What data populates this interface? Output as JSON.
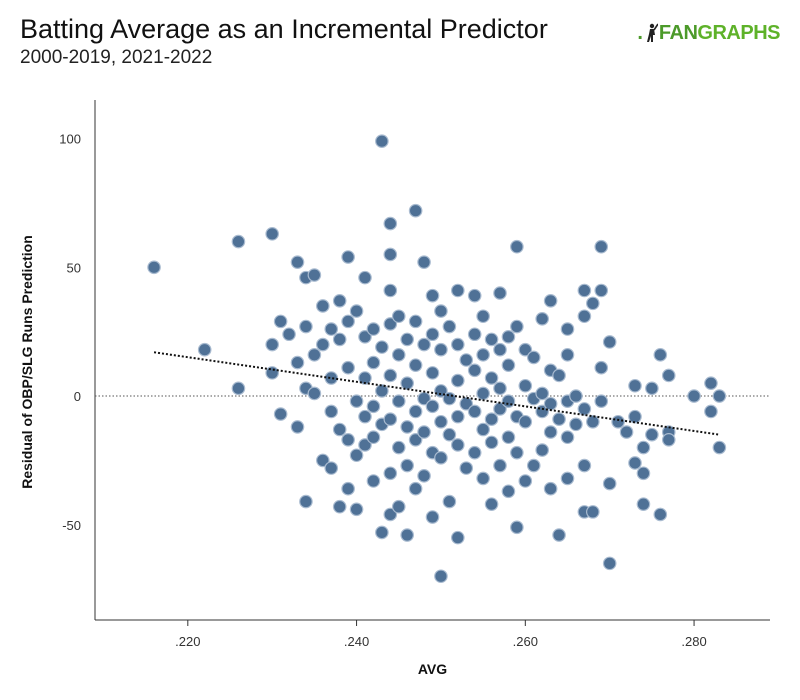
{
  "header": {
    "title": "Batting Average as an Incremental Predictor",
    "subtitle": "2000-2019, 2021-2022",
    "brand_prefix": ".",
    "brand_word_1": "FAN",
    "brand_word_2": "GRAPHS",
    "brand_icon": "batter-silhouette-icon"
  },
  "colors": {
    "point_fill": "#4f7196",
    "point_stroke": "#a9bbd0",
    "trend": "#111111",
    "brand_green": "#4c9a2a"
  },
  "chart_data": {
    "type": "scatter",
    "title": "Batting Average as an Incremental Predictor",
    "subtitle": "2000-2019, 2021-2022",
    "xlabel": "AVG",
    "ylabel": "Residual of OBP/SLG Runs Prediction",
    "xlim": [
      0.209,
      0.289
    ],
    "ylim": [
      -87,
      115
    ],
    "x_ticks": [
      0.22,
      0.24,
      0.26,
      0.28
    ],
    "x_tick_labels": [
      ".220",
      ".240",
      ".260",
      ".280"
    ],
    "y_ticks": [
      -50,
      0,
      50,
      100
    ],
    "y_tick_labels": [
      "-50",
      "0",
      "50",
      "100"
    ],
    "zero_line": "dotted",
    "grid": false,
    "legend": "none",
    "trendline": {
      "x": [
        0.216,
        0.283
      ],
      "y": [
        17,
        -15
      ],
      "style": "dotted"
    },
    "series": [
      {
        "points": [
          [
            0.216,
            50
          ],
          [
            0.222,
            18
          ],
          [
            0.226,
            60
          ],
          [
            0.226,
            3
          ],
          [
            0.23,
            63
          ],
          [
            0.23,
            20
          ],
          [
            0.23,
            9
          ],
          [
            0.231,
            29
          ],
          [
            0.231,
            -7
          ],
          [
            0.232,
            24
          ],
          [
            0.233,
            52
          ],
          [
            0.233,
            13
          ],
          [
            0.233,
            -12
          ],
          [
            0.234,
            46
          ],
          [
            0.234,
            27
          ],
          [
            0.234,
            3
          ],
          [
            0.234,
            -41
          ],
          [
            0.235,
            47
          ],
          [
            0.235,
            16
          ],
          [
            0.235,
            1
          ],
          [
            0.236,
            35
          ],
          [
            0.236,
            20
          ],
          [
            0.236,
            -25
          ],
          [
            0.237,
            26
          ],
          [
            0.237,
            7
          ],
          [
            0.237,
            -6
          ],
          [
            0.237,
            -28
          ],
          [
            0.238,
            37
          ],
          [
            0.238,
            22
          ],
          [
            0.238,
            -13
          ],
          [
            0.238,
            -43
          ],
          [
            0.239,
            54
          ],
          [
            0.239,
            29
          ],
          [
            0.239,
            11
          ],
          [
            0.239,
            -17
          ],
          [
            0.239,
            -36
          ],
          [
            0.24,
            33
          ],
          [
            0.24,
            -2
          ],
          [
            0.24,
            -23
          ],
          [
            0.24,
            -44
          ],
          [
            0.241,
            46
          ],
          [
            0.241,
            23
          ],
          [
            0.241,
            7
          ],
          [
            0.241,
            -8
          ],
          [
            0.241,
            -19
          ],
          [
            0.242,
            26
          ],
          [
            0.242,
            13
          ],
          [
            0.242,
            -4
          ],
          [
            0.242,
            -16
          ],
          [
            0.242,
            -33
          ],
          [
            0.243,
            99
          ],
          [
            0.243,
            19
          ],
          [
            0.243,
            2
          ],
          [
            0.243,
            -11
          ],
          [
            0.243,
            -53
          ],
          [
            0.244,
            67
          ],
          [
            0.244,
            55
          ],
          [
            0.244,
            41
          ],
          [
            0.244,
            28
          ],
          [
            0.244,
            8
          ],
          [
            0.244,
            -9
          ],
          [
            0.244,
            -30
          ],
          [
            0.244,
            -46
          ],
          [
            0.245,
            31
          ],
          [
            0.245,
            16
          ],
          [
            0.245,
            -2
          ],
          [
            0.245,
            -20
          ],
          [
            0.245,
            -43
          ],
          [
            0.246,
            22
          ],
          [
            0.246,
            5
          ],
          [
            0.246,
            -12
          ],
          [
            0.246,
            -27
          ],
          [
            0.246,
            -54
          ],
          [
            0.247,
            72
          ],
          [
            0.247,
            29
          ],
          [
            0.247,
            12
          ],
          [
            0.247,
            -6
          ],
          [
            0.247,
            -17
          ],
          [
            0.247,
            -36
          ],
          [
            0.248,
            52
          ],
          [
            0.248,
            20
          ],
          [
            0.248,
            -1
          ],
          [
            0.248,
            -14
          ],
          [
            0.248,
            -31
          ],
          [
            0.249,
            39
          ],
          [
            0.249,
            24
          ],
          [
            0.249,
            9
          ],
          [
            0.249,
            -4
          ],
          [
            0.249,
            -22
          ],
          [
            0.249,
            -47
          ],
          [
            0.25,
            33
          ],
          [
            0.25,
            18
          ],
          [
            0.25,
            2
          ],
          [
            0.25,
            -10
          ],
          [
            0.25,
            -24
          ],
          [
            0.25,
            -70
          ],
          [
            0.251,
            27
          ],
          [
            0.251,
            -1
          ],
          [
            0.251,
            -15
          ],
          [
            0.251,
            -41
          ],
          [
            0.252,
            41
          ],
          [
            0.252,
            20
          ],
          [
            0.252,
            6
          ],
          [
            0.252,
            -8
          ],
          [
            0.252,
            -19
          ],
          [
            0.252,
            -55
          ],
          [
            0.253,
            14
          ],
          [
            0.253,
            -3
          ],
          [
            0.253,
            -28
          ],
          [
            0.254,
            39
          ],
          [
            0.254,
            24
          ],
          [
            0.254,
            10
          ],
          [
            0.254,
            -6
          ],
          [
            0.254,
            -22
          ],
          [
            0.255,
            31
          ],
          [
            0.255,
            16
          ],
          [
            0.255,
            1
          ],
          [
            0.255,
            -13
          ],
          [
            0.255,
            -32
          ],
          [
            0.256,
            22
          ],
          [
            0.256,
            7
          ],
          [
            0.256,
            -9
          ],
          [
            0.256,
            -18
          ],
          [
            0.256,
            -42
          ],
          [
            0.257,
            40
          ],
          [
            0.257,
            18
          ],
          [
            0.257,
            3
          ],
          [
            0.257,
            -5
          ],
          [
            0.257,
            -27
          ],
          [
            0.258,
            23
          ],
          [
            0.258,
            12
          ],
          [
            0.258,
            -2
          ],
          [
            0.258,
            -16
          ],
          [
            0.258,
            -37
          ],
          [
            0.259,
            58
          ],
          [
            0.259,
            27
          ],
          [
            0.259,
            -8
          ],
          [
            0.259,
            -22
          ],
          [
            0.259,
            -51
          ],
          [
            0.26,
            18
          ],
          [
            0.26,
            4
          ],
          [
            0.26,
            -10
          ],
          [
            0.26,
            -33
          ],
          [
            0.261,
            15
          ],
          [
            0.261,
            -1
          ],
          [
            0.261,
            -27
          ],
          [
            0.262,
            30
          ],
          [
            0.262,
            1
          ],
          [
            0.262,
            -6
          ],
          [
            0.262,
            -21
          ],
          [
            0.263,
            37
          ],
          [
            0.263,
            10
          ],
          [
            0.263,
            -3
          ],
          [
            0.263,
            -14
          ],
          [
            0.263,
            -36
          ],
          [
            0.264,
            8
          ],
          [
            0.264,
            -9
          ],
          [
            0.264,
            -54
          ],
          [
            0.265,
            26
          ],
          [
            0.265,
            16
          ],
          [
            0.265,
            -2
          ],
          [
            0.265,
            -16
          ],
          [
            0.265,
            -32
          ],
          [
            0.266,
            0
          ],
          [
            0.266,
            -11
          ],
          [
            0.267,
            41
          ],
          [
            0.267,
            31
          ],
          [
            0.267,
            -5
          ],
          [
            0.267,
            -27
          ],
          [
            0.267,
            -45
          ],
          [
            0.268,
            36
          ],
          [
            0.268,
            -10
          ],
          [
            0.268,
            -45
          ],
          [
            0.269,
            58
          ],
          [
            0.269,
            41
          ],
          [
            0.269,
            11
          ],
          [
            0.269,
            -2
          ],
          [
            0.27,
            21
          ],
          [
            0.27,
            -34
          ],
          [
            0.27,
            -65
          ],
          [
            0.271,
            -10
          ],
          [
            0.272,
            -14
          ],
          [
            0.273,
            4
          ],
          [
            0.273,
            -8
          ],
          [
            0.273,
            -26
          ],
          [
            0.274,
            -20
          ],
          [
            0.274,
            -30
          ],
          [
            0.274,
            -42
          ],
          [
            0.275,
            3
          ],
          [
            0.275,
            -15
          ],
          [
            0.276,
            16
          ],
          [
            0.276,
            -46
          ],
          [
            0.277,
            8
          ],
          [
            0.277,
            -14
          ],
          [
            0.277,
            -17
          ],
          [
            0.28,
            0
          ],
          [
            0.282,
            5
          ],
          [
            0.282,
            -6
          ],
          [
            0.283,
            0
          ],
          [
            0.283,
            -20
          ]
        ]
      }
    ]
  }
}
